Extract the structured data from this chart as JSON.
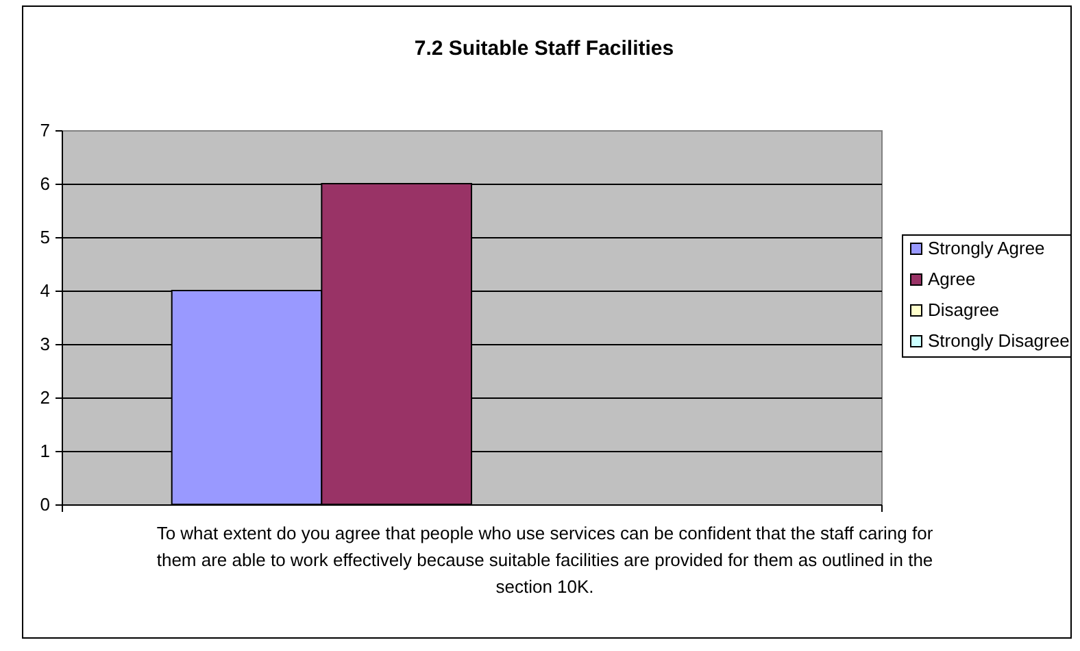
{
  "chart_data": {
    "type": "bar",
    "title": "7.2 Suitable Staff Facilities",
    "xlabel": "To what extent do you agree that people who use services can be confident that the staff caring for them are able to work effectively because suitable facilities are provided for them as outlined in the section 10K.",
    "categories": [
      null
    ],
    "series": [
      {
        "name": "Strongly Agree",
        "color": "#9999ff",
        "values": [
          4
        ]
      },
      {
        "name": "Agree",
        "color": "#993366",
        "values": [
          6
        ]
      },
      {
        "name": "Disagree",
        "color": "#ffffcc",
        "values": [
          0
        ]
      },
      {
        "name": "Strongly Disagree",
        "color": "#ccffff",
        "values": [
          0
        ]
      }
    ],
    "ylim": [
      0,
      7
    ],
    "yticks": [
      0,
      1,
      2,
      3,
      4,
      5,
      6,
      7
    ],
    "grid": "y",
    "legend": "right"
  }
}
